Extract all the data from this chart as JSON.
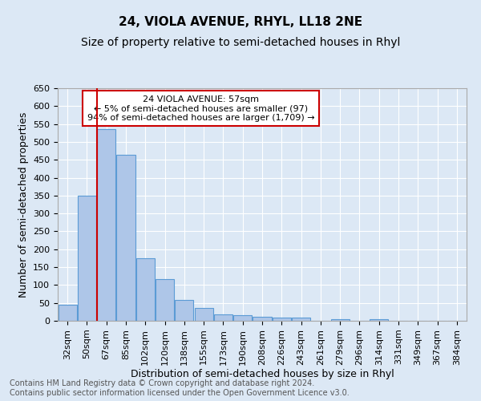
{
  "title": "24, VIOLA AVENUE, RHYL, LL18 2NE",
  "subtitle": "Size of property relative to semi-detached houses in Rhyl",
  "xlabel": "Distribution of semi-detached houses by size in Rhyl",
  "ylabel": "Number of semi-detached properties",
  "bar_labels": [
    "32sqm",
    "50sqm",
    "67sqm",
    "85sqm",
    "102sqm",
    "120sqm",
    "138sqm",
    "155sqm",
    "173sqm",
    "190sqm",
    "208sqm",
    "226sqm",
    "243sqm",
    "261sqm",
    "279sqm",
    "296sqm",
    "314sqm",
    "331sqm",
    "349sqm",
    "367sqm",
    "384sqm"
  ],
  "bar_values": [
    45,
    350,
    535,
    465,
    175,
    117,
    58,
    35,
    17,
    15,
    12,
    10,
    8,
    0,
    5,
    0,
    5,
    0,
    0,
    0,
    0
  ],
  "bar_color": "#aec6e8",
  "bar_edge_color": "#5b9bd5",
  "ylim": [
    0,
    650
  ],
  "yticks": [
    0,
    50,
    100,
    150,
    200,
    250,
    300,
    350,
    400,
    450,
    500,
    550,
    600,
    650
  ],
  "red_line_x": 1.5,
  "annotation_text": "24 VIOLA AVENUE: 57sqm\n← 5% of semi-detached houses are smaller (97)\n94% of semi-detached houses are larger (1,709) →",
  "annotation_box_color": "#ffffff",
  "annotation_edge_color": "#cc0000",
  "background_color": "#dce8f5",
  "plot_background_color": "#dce8f5",
  "footer_text": "Contains HM Land Registry data © Crown copyright and database right 2024.\nContains public sector information licensed under the Open Government Licence v3.0.",
  "red_line_color": "#cc0000",
  "grid_color": "#ffffff",
  "title_fontsize": 11,
  "subtitle_fontsize": 10,
  "axis_label_fontsize": 9,
  "tick_fontsize": 8,
  "annotation_fontsize": 8,
  "footer_fontsize": 7
}
